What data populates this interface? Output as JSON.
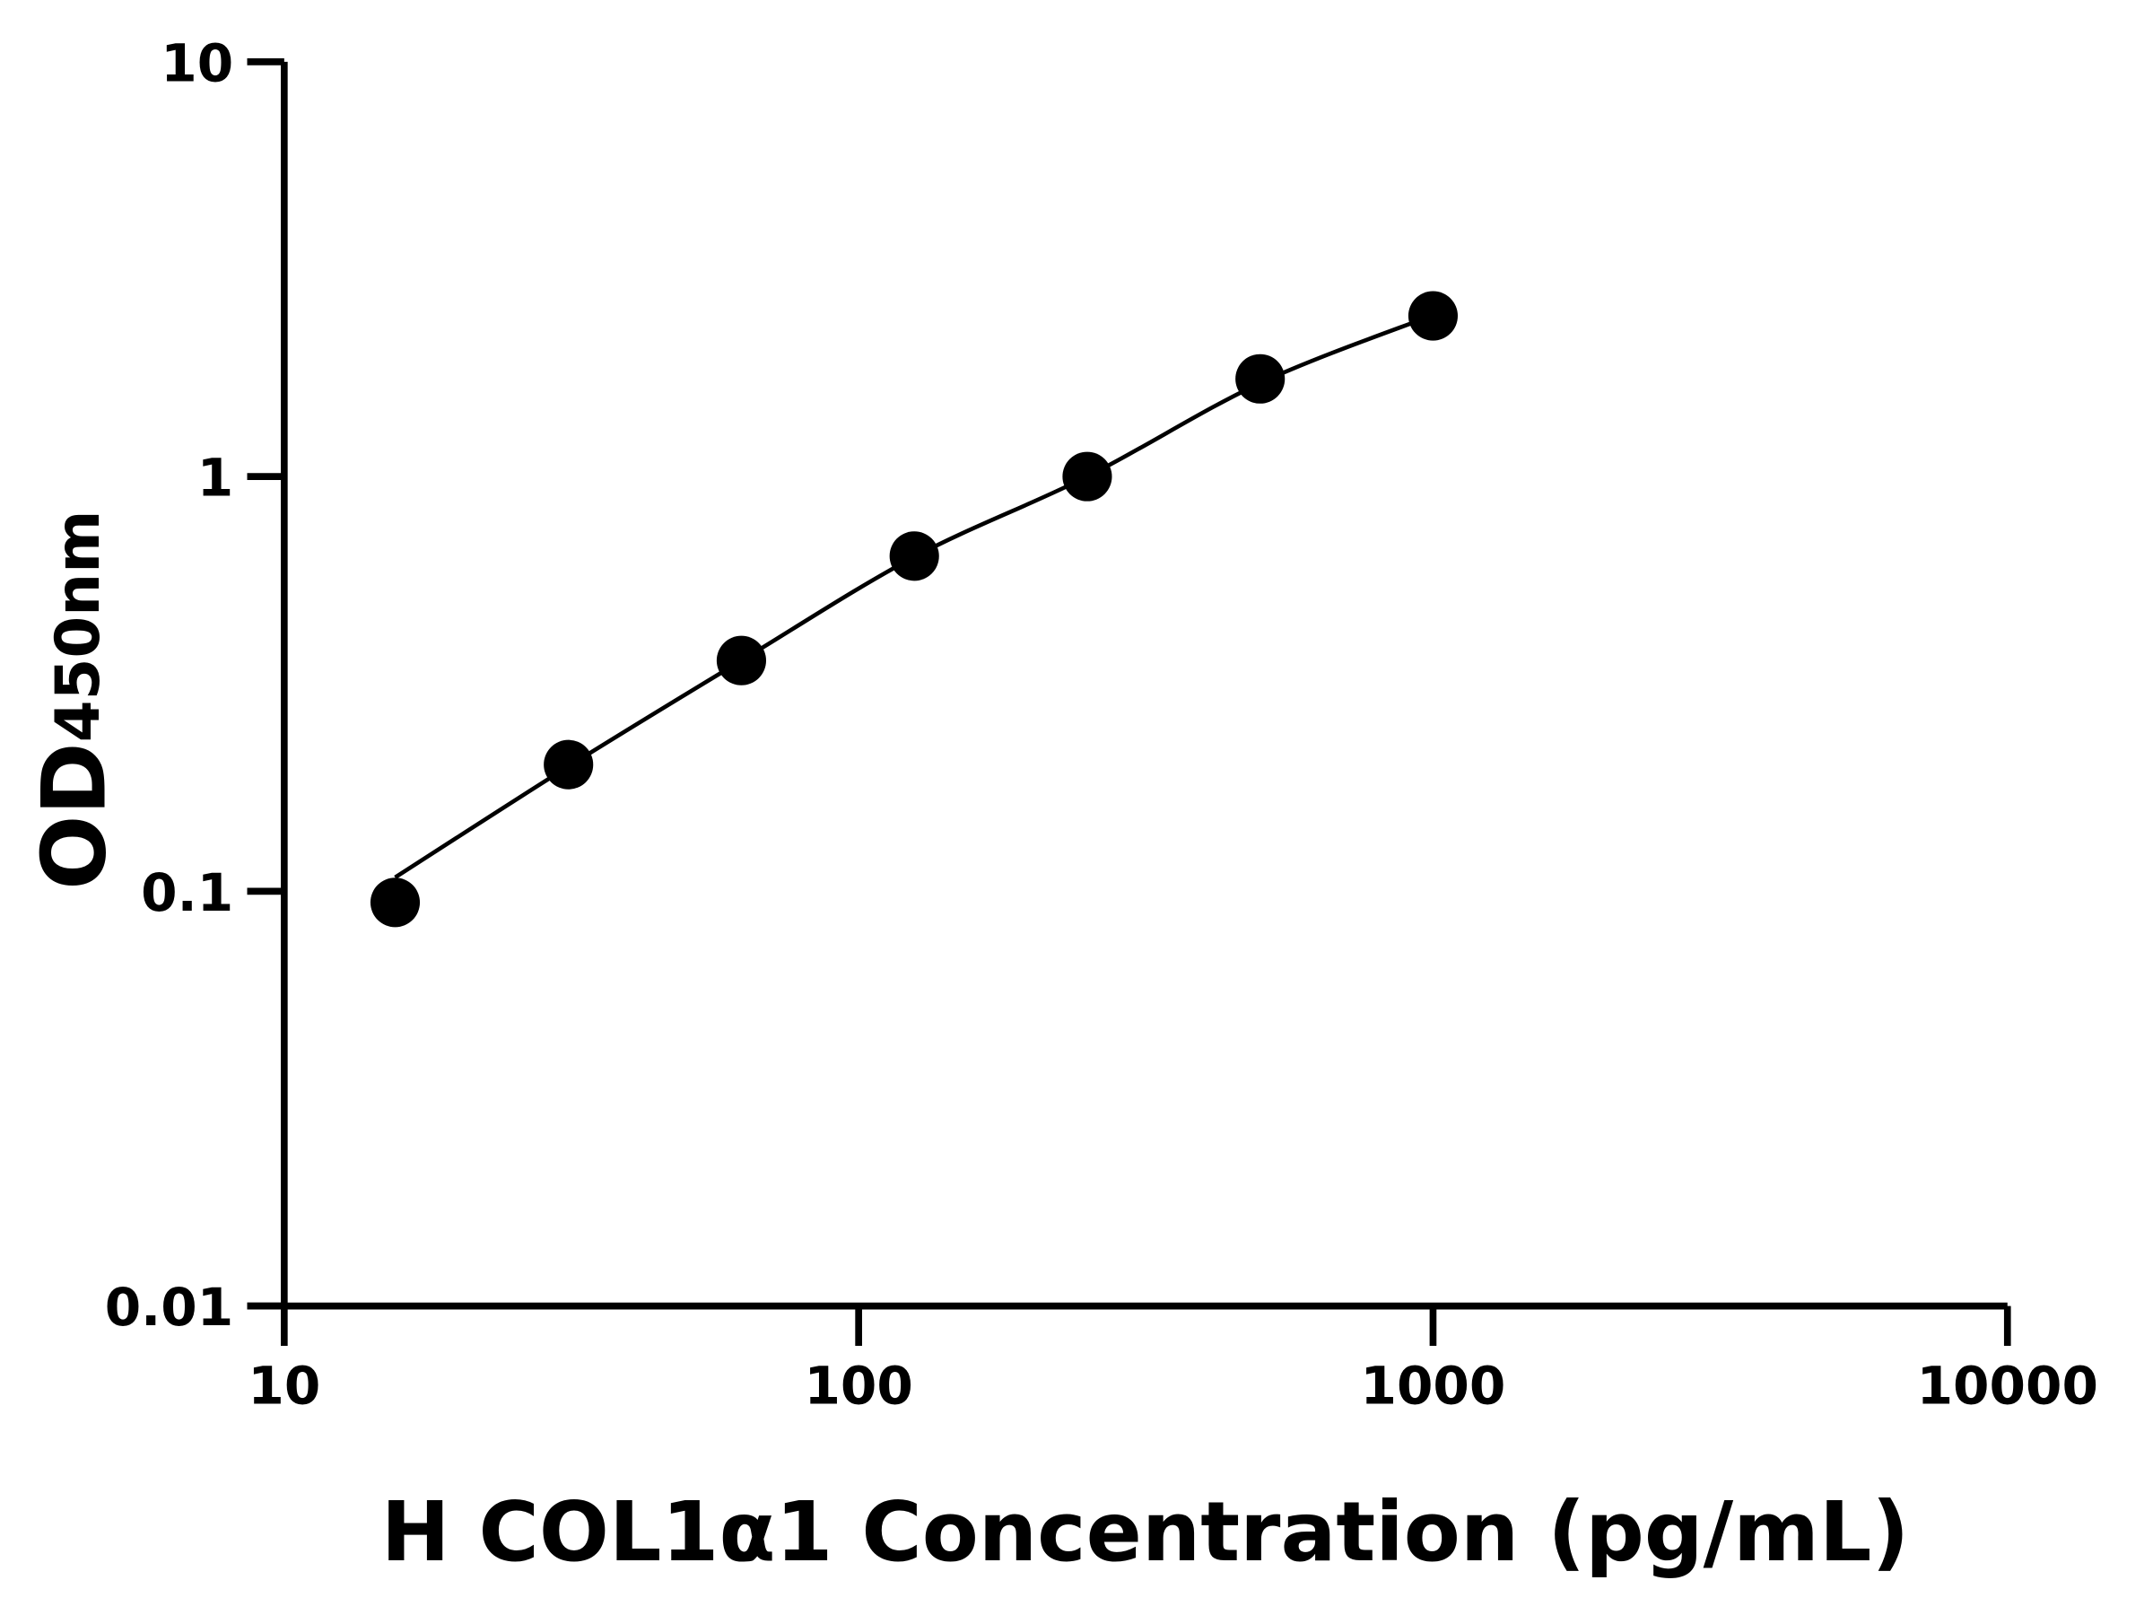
{
  "chart_data": {
    "type": "scatter",
    "title": "",
    "xlabel": "H COL1α1 Concentration (pg/mL)",
    "ylabel_main": "OD",
    "ylabel_sub": "450nm",
    "x_scale": "log",
    "y_scale": "log",
    "xlim": [
      10,
      10000
    ],
    "ylim": [
      0.01,
      10
    ],
    "x_ticks": [
      "10",
      "100",
      "1000",
      "10000"
    ],
    "y_ticks": [
      "0.01",
      "0.1",
      "1",
      "10"
    ],
    "grid": false,
    "legend": "none",
    "marker_color": "#000000",
    "line_color": "#000000",
    "series": [
      {
        "x": [
          15.6,
          31.25,
          62.5,
          125,
          250,
          500,
          1000
        ],
        "y": [
          0.094,
          0.202,
          0.36,
          0.643,
          1.0,
          1.72,
          2.44
        ]
      }
    ],
    "fit_curve": {
      "x": [
        15.6,
        31.25,
        62.5,
        125,
        250,
        500,
        1000
      ],
      "y": [
        0.108,
        0.2,
        0.36,
        0.64,
        1.0,
        1.68,
        2.45
      ]
    }
  }
}
